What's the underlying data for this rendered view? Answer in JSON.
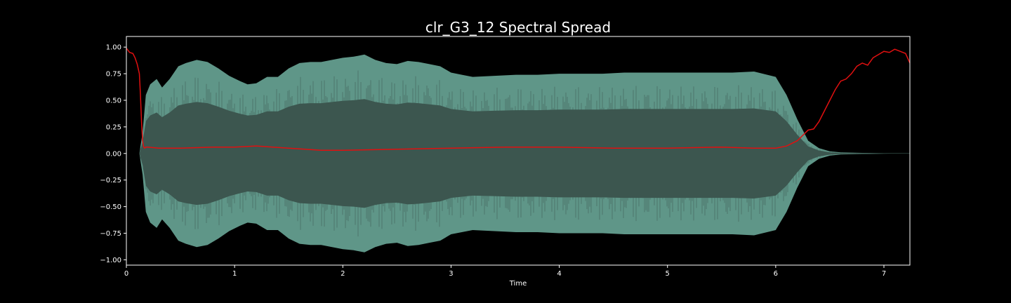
{
  "chart_data": {
    "type": "line",
    "title": "clr_G3_12 Spectral Spread",
    "xlabel": "Time",
    "ylabel": "",
    "xlim": [
      0,
      7.24
    ],
    "ylim": [
      -1.05,
      1.1
    ],
    "xticks": [
      0,
      1,
      2,
      3,
      4,
      5,
      6,
      7
    ],
    "yticks": [
      -1.0,
      -0.75,
      -0.5,
      -0.25,
      0.0,
      0.25,
      0.5,
      0.75,
      1.0
    ],
    "ytick_labels": [
      "−1.00",
      "−0.75",
      "−0.50",
      "−0.25",
      "0.00",
      "0.25",
      "0.50",
      "0.75",
      "1.00"
    ],
    "grid": false,
    "colors": {
      "background": "#000000",
      "axes_edge": "#ffffff",
      "waveform_outer": "#5f9688",
      "waveform_inner": "#3c564f",
      "spread_line": "#e01010"
    },
    "series": [
      {
        "name": "waveform-envelope",
        "x": [
          0,
          0.12,
          0.15,
          0.18,
          0.22,
          0.28,
          0.33,
          0.4,
          0.48,
          0.55,
          0.65,
          0.75,
          0.85,
          0.95,
          1.05,
          1.12,
          1.2,
          1.3,
          1.4,
          1.5,
          1.6,
          1.7,
          1.8,
          1.9,
          2.0,
          2.1,
          2.2,
          2.3,
          2.4,
          2.5,
          2.6,
          2.7,
          2.8,
          2.9,
          3.0,
          3.1,
          3.2,
          3.4,
          3.6,
          3.8,
          4.0,
          4.2,
          4.4,
          4.6,
          4.8,
          5.0,
          5.2,
          5.4,
          5.6,
          5.8,
          6.0,
          6.1,
          6.2,
          6.3,
          6.4,
          6.5,
          6.6,
          6.8,
          7.0,
          7.24
        ],
        "values": [
          0.0,
          0.0,
          0.2,
          0.55,
          0.65,
          0.7,
          0.62,
          0.7,
          0.82,
          0.85,
          0.88,
          0.86,
          0.8,
          0.73,
          0.68,
          0.65,
          0.66,
          0.72,
          0.72,
          0.8,
          0.85,
          0.86,
          0.86,
          0.88,
          0.9,
          0.91,
          0.93,
          0.88,
          0.85,
          0.84,
          0.87,
          0.86,
          0.84,
          0.82,
          0.76,
          0.74,
          0.72,
          0.73,
          0.74,
          0.74,
          0.75,
          0.75,
          0.75,
          0.76,
          0.76,
          0.76,
          0.76,
          0.76,
          0.76,
          0.77,
          0.72,
          0.55,
          0.32,
          0.12,
          0.05,
          0.02,
          0.01,
          0.005,
          0.002,
          0.001
        ]
      },
      {
        "name": "spectral-spread",
        "x": [
          0,
          0.03,
          0.06,
          0.08,
          0.1,
          0.12,
          0.13,
          0.14,
          0.15,
          0.16,
          0.17,
          0.18,
          0.2,
          0.3,
          0.5,
          0.8,
          1.0,
          1.2,
          1.5,
          1.8,
          2.0,
          2.5,
          3.0,
          3.5,
          4.0,
          4.5,
          5.0,
          5.5,
          5.8,
          6.0,
          6.1,
          6.2,
          6.25,
          6.3,
          6.35,
          6.4,
          6.45,
          6.5,
          6.55,
          6.6,
          6.65,
          6.7,
          6.75,
          6.8,
          6.85,
          6.9,
          6.95,
          7.0,
          7.05,
          7.1,
          7.15,
          7.2,
          7.24
        ],
        "values": [
          0.99,
          0.95,
          0.94,
          0.9,
          0.84,
          0.75,
          0.55,
          0.3,
          0.12,
          0.06,
          0.05,
          0.06,
          0.06,
          0.05,
          0.05,
          0.06,
          0.06,
          0.07,
          0.05,
          0.03,
          0.03,
          0.04,
          0.05,
          0.06,
          0.06,
          0.05,
          0.05,
          0.06,
          0.05,
          0.05,
          0.07,
          0.12,
          0.17,
          0.22,
          0.23,
          0.3,
          0.4,
          0.5,
          0.6,
          0.68,
          0.7,
          0.75,
          0.82,
          0.85,
          0.83,
          0.9,
          0.93,
          0.96,
          0.95,
          0.98,
          0.96,
          0.94,
          0.85
        ]
      }
    ]
  }
}
